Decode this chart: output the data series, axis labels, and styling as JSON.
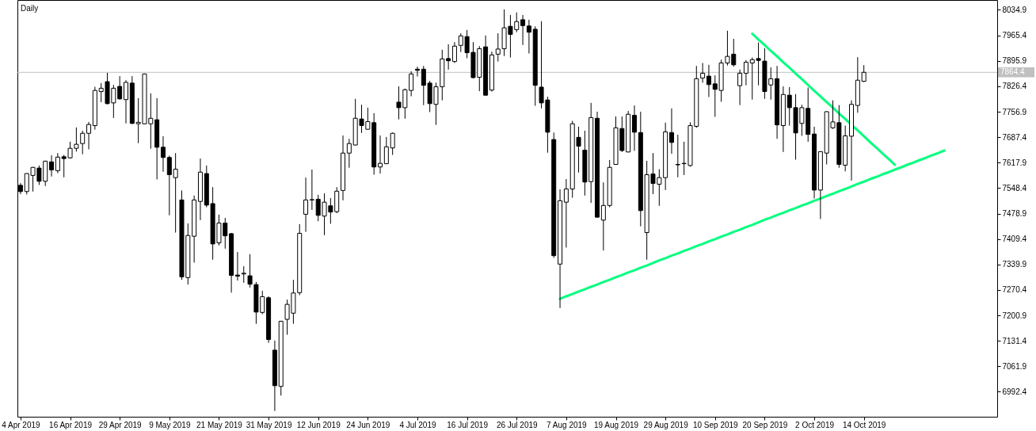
{
  "chart_data": {
    "type": "candlestick",
    "title": "Daily",
    "color": "#000000",
    "categories": [
      "4 Apr 2019",
      null,
      null,
      null,
      null,
      null,
      null,
      null,
      "16 Apr 2019",
      null,
      null,
      null,
      null,
      null,
      null,
      null,
      "29 Apr 2019",
      null,
      null,
      null,
      null,
      null,
      null,
      null,
      "9 May 2019",
      null,
      null,
      null,
      null,
      null,
      null,
      null,
      "21 May 2019",
      null,
      null,
      null,
      null,
      null,
      null,
      null,
      "31 May 2019",
      null,
      null,
      null,
      null,
      null,
      null,
      null,
      "12 Jun 2019",
      null,
      null,
      null,
      null,
      null,
      null,
      null,
      "24 Jun 2019",
      null,
      null,
      null,
      null,
      null,
      null,
      null,
      "4 Jul 2019",
      null,
      null,
      null,
      null,
      null,
      null,
      null,
      "16 Jul 2019",
      null,
      null,
      null,
      null,
      null,
      null,
      null,
      "26 Jul 2019",
      null,
      null,
      null,
      null,
      null,
      null,
      null,
      "7 Aug 2019",
      null,
      null,
      null,
      null,
      null,
      null,
      null,
      "19 Aug 2019",
      null,
      null,
      null,
      null,
      null,
      null,
      null,
      "29 Aug 2019",
      null,
      null,
      null,
      null,
      null,
      null,
      null,
      "10 Sep 2019",
      null,
      null,
      null,
      null,
      null,
      null,
      null,
      "20 Sep 2019",
      null,
      null,
      null,
      null,
      null,
      null,
      null,
      "2 Oct 2019",
      null,
      null,
      null,
      null,
      null,
      null,
      null,
      "14 Oct 2019",
      null,
      null,
      null,
      null,
      null,
      null,
      null,
      null,
      null,
      null,
      null,
      null,
      null,
      null,
      null,
      null,
      null,
      null,
      null,
      null,
      null
    ],
    "ohlc": [
      [
        7556,
        7562,
        7532,
        7539
      ],
      [
        7539,
        7589,
        7531,
        7588
      ],
      [
        7583,
        7606,
        7539,
        7605
      ],
      [
        7603,
        7610,
        7557,
        7567
      ],
      [
        7567,
        7623,
        7554,
        7622
      ],
      [
        7620,
        7638,
        7580,
        7598
      ],
      [
        7596,
        7644,
        7589,
        7633
      ],
      [
        7634,
        7639,
        7578,
        7629
      ],
      [
        7631,
        7675,
        7629,
        7657
      ],
      [
        7657,
        7714,
        7648,
        7668
      ],
      [
        7670,
        7705,
        7641,
        7698
      ],
      [
        7698,
        7729,
        7654,
        7722
      ],
      [
        7719,
        7825,
        7708,
        7815
      ],
      [
        7812,
        7835,
        7783,
        7821
      ],
      [
        7839,
        7863,
        7777,
        7779
      ],
      [
        7781,
        7830,
        7740,
        7821
      ],
      [
        7826,
        7854,
        7790,
        7792
      ],
      [
        7790,
        7843,
        7725,
        7837
      ],
      [
        7835,
        7854,
        7723,
        7725
      ],
      [
        7724,
        7794,
        7671,
        7728
      ],
      [
        7724,
        7861,
        7723,
        7860
      ],
      [
        7724,
        7807,
        7656,
        7739
      ],
      [
        7735,
        7794,
        7572,
        7660
      ],
      [
        7660,
        7690,
        7593,
        7632
      ],
      [
        7632,
        7637,
        7474,
        7585
      ],
      [
        7577,
        7644,
        7427,
        7600
      ],
      [
        7516,
        7542,
        7298,
        7306
      ],
      [
        7304,
        7452,
        7285,
        7419
      ],
      [
        7417,
        7528,
        7345,
        7516
      ],
      [
        7512,
        7629,
        7461,
        7592
      ],
      [
        7588,
        7610,
        7496,
        7502
      ],
      [
        7506,
        7551,
        7353,
        7396
      ],
      [
        7399,
        7476,
        7392,
        7453
      ],
      [
        7453,
        7467,
        7383,
        7418
      ],
      [
        7424,
        7426,
        7263,
        7310
      ],
      [
        7311,
        7374,
        7296,
        7308
      ],
      [
        7314,
        7335,
        7290,
        7316
      ],
      [
        7309,
        7368,
        7277,
        7286
      ],
      [
        7285,
        7292,
        7178,
        7210
      ],
      [
        7209,
        7268,
        7204,
        7252
      ],
      [
        7249,
        7253,
        7126,
        7135
      ],
      [
        7106,
        7132,
        6940,
        7009
      ],
      [
        7007,
        7186,
        6982,
        7185
      ],
      [
        7190,
        7244,
        7148,
        7231
      ],
      [
        7207,
        7298,
        7178,
        7262
      ],
      [
        7263,
        7450,
        7256,
        7425
      ],
      [
        7477,
        7577,
        7429,
        7516
      ],
      [
        7516,
        7599,
        7489,
        7517
      ],
      [
        7518,
        7530,
        7458,
        7474
      ],
      [
        7472,
        7534,
        7420,
        7510
      ],
      [
        7500,
        7521,
        7451,
        7483
      ],
      [
        7484,
        7551,
        7480,
        7540
      ],
      [
        7542,
        7692,
        7515,
        7644
      ],
      [
        7644,
        7683,
        7604,
        7670
      ],
      [
        7666,
        7792,
        7665,
        7739
      ],
      [
        7737,
        7776,
        7699,
        7719
      ],
      [
        7709,
        7768,
        7708,
        7730
      ],
      [
        7727,
        7753,
        7585,
        7606
      ],
      [
        7606,
        7692,
        7588,
        7616
      ],
      [
        7615,
        7688,
        7614,
        7661
      ],
      [
        7658,
        7700,
        7639,
        7698
      ],
      [
        7783,
        7826,
        7736,
        7768
      ],
      [
        7768,
        7820,
        7738,
        7817
      ],
      [
        7815,
        7867,
        7799,
        7860
      ],
      [
        7873,
        7880,
        7853,
        7870
      ],
      [
        7873,
        7882,
        7775,
        7829
      ],
      [
        7835,
        7841,
        7756,
        7779
      ],
      [
        7777,
        7836,
        7721,
        7825
      ],
      [
        7825,
        7926,
        7788,
        7901
      ],
      [
        7902,
        7941,
        7872,
        7896
      ],
      [
        7894,
        7947,
        7890,
        7936
      ],
      [
        7938,
        7971,
        7920,
        7964
      ],
      [
        7962,
        7980,
        7903,
        7918
      ],
      [
        7919,
        7947,
        7848,
        7850
      ],
      [
        7851,
        7936,
        7813,
        7929
      ],
      [
        7934,
        7965,
        7801,
        7802
      ],
      [
        7816,
        7921,
        7812,
        7912
      ],
      [
        7914,
        7971,
        7894,
        7928
      ],
      [
        7929,
        8036,
        7909,
        7986
      ],
      [
        7990,
        8021,
        7905,
        7968
      ],
      [
        7981,
        8028,
        7974,
        8003
      ],
      [
        8008,
        8021,
        7939,
        7992
      ],
      [
        7991,
        8008,
        7916,
        7974
      ],
      [
        7982,
        7990,
        7773,
        7829
      ],
      [
        7824,
        8004,
        7766,
        7781
      ],
      [
        7789,
        7798,
        7645,
        7701
      ],
      [
        7681,
        7700,
        7358,
        7364
      ],
      [
        7341,
        7545,
        7221,
        7514
      ],
      [
        7510,
        7573,
        7386,
        7546
      ],
      [
        7546,
        7732,
        7522,
        7724
      ],
      [
        7687,
        7716,
        7591,
        7663
      ],
      [
        7652,
        7705,
        7528,
        7565
      ],
      [
        7566,
        7781,
        7508,
        7741
      ],
      [
        7739,
        7757,
        7468,
        7469
      ],
      [
        7461,
        7564,
        7378,
        7501
      ],
      [
        7501,
        7625,
        7496,
        7605
      ],
      [
        7613,
        7744,
        7612,
        7713
      ],
      [
        7711,
        7744,
        7647,
        7651
      ],
      [
        7647,
        7759,
        7646,
        7750
      ],
      [
        7747,
        7774,
        7650,
        7701
      ],
      [
        7700,
        7757,
        7444,
        7487
      ],
      [
        7427,
        7623,
        7353,
        7585
      ],
      [
        7587,
        7644,
        7532,
        7561
      ],
      [
        7559,
        7600,
        7500,
        7577
      ],
      [
        7577,
        7727,
        7543,
        7702
      ],
      [
        7700,
        7766,
        7642,
        7673
      ],
      [
        7613,
        7694,
        7578,
        7612
      ],
      [
        7615,
        7675,
        7584,
        7616
      ],
      [
        7610,
        7728,
        7607,
        7719
      ],
      [
        7717,
        7882,
        7713,
        7847
      ],
      [
        7849,
        7890,
        7836,
        7862
      ],
      [
        7854,
        7885,
        7797,
        7831
      ],
      [
        7833,
        7856,
        7743,
        7818
      ],
      [
        7815,
        7899,
        7784,
        7890
      ],
      [
        7890,
        7978,
        7883,
        7908
      ],
      [
        7914,
        7956,
        7880,
        7885
      ],
      [
        7828,
        7872,
        7775,
        7862
      ],
      [
        7862,
        7898,
        7829,
        7892
      ],
      [
        7890,
        7905,
        7790,
        7899
      ],
      [
        7902,
        7946,
        7829,
        7897
      ],
      [
        7895,
        7930,
        7792,
        7812
      ],
      [
        7830,
        7878,
        7790,
        7847
      ],
      [
        7847,
        7882,
        7683,
        7721
      ],
      [
        7719,
        7826,
        7647,
        7804
      ],
      [
        7802,
        7824,
        7719,
        7768
      ],
      [
        7768,
        7805,
        7626,
        7699
      ],
      [
        7725,
        7776,
        7691,
        7768
      ],
      [
        7766,
        7823,
        7675,
        7695
      ],
      [
        7696,
        7716,
        7520,
        7543
      ],
      [
        7543,
        7649,
        7464,
        7648
      ],
      [
        7644,
        7758,
        7613,
        7757
      ],
      [
        7713,
        7788,
        7710,
        7729
      ],
      [
        7727,
        7775,
        7604,
        7613
      ],
      [
        7611,
        7719,
        7594,
        7691
      ],
      [
        7690,
        7788,
        7569,
        7777
      ],
      [
        7774,
        7906,
        7754,
        7843
      ],
      [
        7840,
        7884,
        7838,
        7864.4
      ],
      null,
      null,
      null,
      null,
      null,
      null,
      null,
      null,
      null,
      null,
      null,
      null,
      null,
      null,
      null,
      null,
      null,
      null,
      null,
      null,
      null
    ],
    "colors": [
      "#000000",
      "#ffffff",
      "#ffffff",
      "#000000",
      "#ffffff",
      "#000000",
      "#ffffff",
      "#000000",
      "#ffffff",
      "#ffffff",
      "#ffffff",
      "#ffffff",
      "#ffffff",
      "#ffffff",
      "#000000",
      "#ffffff",
      "#000000",
      "#ffffff",
      "#000000",
      "#ffffff",
      "#ffffff",
      "#ffffff",
      "#000000",
      "#000000",
      "#000000",
      "#ffffff",
      "#000000",
      "#ffffff",
      "#ffffff",
      "#ffffff",
      "#000000",
      "#000000",
      "#ffffff",
      "#000000",
      "#000000",
      "#000000",
      "#ffffff",
      "#000000",
      "#000000",
      "#ffffff",
      "#000000",
      "#000000",
      "#ffffff",
      "#ffffff",
      "#ffffff",
      "#ffffff",
      "#ffffff",
      "#ffffff",
      "#000000",
      "#ffffff",
      "#000000",
      "#ffffff",
      "#ffffff",
      "#ffffff",
      "#ffffff",
      "#000000",
      "#ffffff",
      "#000000",
      "#ffffff",
      "#ffffff",
      "#ffffff",
      "#000000",
      "#ffffff",
      "#ffffff",
      "#000000",
      "#000000",
      "#000000",
      "#ffffff",
      "#ffffff",
      "#000000",
      "#ffffff",
      "#ffffff",
      "#000000",
      "#000000",
      "#ffffff",
      "#000000",
      "#ffffff",
      "#ffffff",
      "#ffffff",
      "#000000",
      "#ffffff",
      "#000000",
      "#000000",
      "#000000",
      "#000000",
      "#000000",
      "#000000",
      "#ffffff",
      "#ffffff",
      "#ffffff",
      "#000000",
      "#000000",
      "#ffffff",
      "#000000",
      "#ffffff",
      "#ffffff",
      "#ffffff",
      "#000000",
      "#ffffff",
      "#000000",
      "#000000",
      "#ffffff",
      "#000000",
      "#ffffff",
      "#ffffff",
      "#000000",
      "#000000",
      "#ffffff",
      "#ffffff",
      "#ffffff",
      "#ffffff",
      "#000000",
      "#000000",
      "#ffffff",
      "#ffffff",
      "#000000",
      "#ffffff",
      "#ffffff",
      "#ffffff",
      "#000000",
      "#000000",
      "#ffffff",
      "#000000",
      "#ffffff",
      "#000000",
      "#000000",
      "#ffffff",
      "#000000",
      "#000000",
      "#ffffff",
      "#ffffff",
      "#ffffff",
      "#000000",
      "#ffffff",
      "#ffffff",
      "#ffffff",
      "#ffffff",
      null,
      null,
      null,
      null,
      null,
      null,
      null,
      null,
      null,
      null,
      null,
      null,
      null,
      null,
      null,
      null,
      null,
      null,
      null,
      null,
      null
    ],
    "series": [
      {
        "type": "line",
        "color": "#00ff7f",
        "values": [
          null,
          null,
          null,
          null,
          null,
          null,
          null,
          null,
          null,
          null,
          null,
          null,
          null,
          null,
          null,
          null,
          null,
          null,
          null,
          null,
          null,
          null,
          null,
          null,
          null,
          null,
          null,
          null,
          null,
          null,
          null,
          null,
          null,
          null,
          null,
          null,
          null,
          null,
          null,
          null,
          null,
          null,
          null,
          null,
          null,
          null,
          null,
          null,
          null,
          null,
          null,
          null,
          null,
          null,
          null,
          null,
          null,
          null,
          null,
          null,
          null,
          null,
          null,
          null,
          null,
          null,
          null,
          null,
          null,
          null,
          null,
          null,
          null,
          null,
          null,
          null,
          null,
          null,
          null,
          null,
          null,
          null,
          null,
          null,
          null,
          null,
          null,
          7246,
          7253,
          7259,
          7266,
          7272,
          7279,
          7285,
          7292,
          7298,
          7305,
          7311,
          7318,
          7324,
          7331,
          7337,
          7344,
          7351,
          7357,
          7364,
          7370,
          7377,
          7383,
          7390,
          7396,
          7403,
          7409,
          7416,
          7422,
          7429,
          7435,
          7442,
          7448,
          7455,
          7462,
          7468,
          7475,
          7481,
          7488,
          7494,
          7501,
          7507,
          7514,
          7520,
          7527,
          7533,
          7540,
          7546,
          7553,
          7560,
          7566,
          7573,
          7579,
          7586,
          7592,
          7599,
          7605,
          7612,
          7618,
          7625,
          7631,
          7638,
          7644,
          7651,
          null,
          null,
          null,
          null,
          null,
          null,
          null,
          null
        ]
      },
      {
        "type": "line",
        "color": "#00ff7f",
        "values": [
          null,
          null,
          null,
          null,
          null,
          null,
          null,
          null,
          null,
          null,
          null,
          null,
          null,
          null,
          null,
          null,
          null,
          null,
          null,
          null,
          null,
          null,
          null,
          null,
          null,
          null,
          null,
          null,
          null,
          null,
          null,
          null,
          null,
          null,
          null,
          null,
          null,
          null,
          null,
          null,
          null,
          null,
          null,
          null,
          null,
          null,
          null,
          null,
          null,
          null,
          null,
          null,
          null,
          null,
          null,
          null,
          null,
          null,
          null,
          null,
          null,
          null,
          null,
          null,
          null,
          null,
          null,
          null,
          null,
          null,
          null,
          null,
          null,
          null,
          null,
          null,
          null,
          null,
          null,
          null,
          null,
          null,
          null,
          null,
          null,
          null,
          null,
          null,
          null,
          null,
          null,
          null,
          null,
          null,
          null,
          null,
          null,
          null,
          null,
          null,
          null,
          null,
          null,
          null,
          null,
          null,
          null,
          null,
          null,
          null,
          null,
          null,
          null,
          null,
          null,
          null,
          null,
          null,
          7970,
          7954,
          7939,
          7923,
          7908,
          7892,
          7877,
          7861,
          7846,
          7830,
          7814,
          7799,
          7783,
          7768,
          7752,
          7737,
          7721,
          7706,
          7690,
          7674,
          7659,
          7643,
          7628,
          7612,
          null,
          null,
          null,
          null,
          null,
          null,
          null,
          null,
          null,
          null,
          null,
          null,
          null,
          null,
          null,
          null
        ]
      }
    ],
    "ref_lines": [
      {
        "axis": "y",
        "value": 7864.4,
        "label": "7864.4",
        "color": "#c0c0c0"
      }
    ],
    "ylim": [
      6924.2,
      8061.9
    ],
    "yticks": [
      8034.9,
      7965.4,
      7895.9,
      7826.4,
      7756.9,
      7687.4,
      7617.9,
      7548.4,
      7478.9,
      7409.4,
      7339.9,
      7270.4,
      7200.9,
      7131.4,
      7061.9,
      6992.4
    ],
    "grid": false
  }
}
